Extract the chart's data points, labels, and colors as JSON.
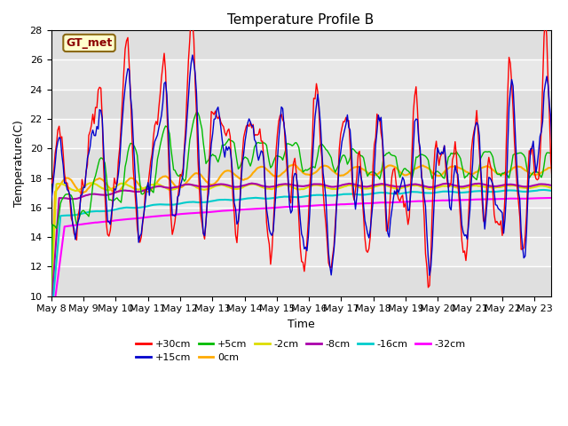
{
  "title": "Temperature Profile B",
  "xlabel": "Time",
  "ylabel": "Temperature(C)",
  "annotation": "GT_met",
  "ylim": [
    10,
    28
  ],
  "x_tick_labels": [
    "May 8",
    "May 9",
    "May 10",
    "May 11",
    "May 12",
    "May 13",
    "May 14",
    "May 15",
    "May 16",
    "May 17",
    "May 18",
    "May 19",
    "May 20",
    "May 21",
    "May 22",
    "May 23"
  ],
  "series_colors": {
    "+30cm": "#ff0000",
    "+15cm": "#0000cc",
    "+5cm": "#00bb00",
    "0cm": "#ffaa00",
    "-2cm": "#dddd00",
    "-8cm": "#aa00aa",
    "-16cm": "#00cccc",
    "-32cm": "#ff00ff"
  },
  "plot_bg_color": "#e8e8e8",
  "title_fontsize": 11,
  "axis_fontsize": 9,
  "tick_fontsize": 8,
  "legend_ncol_row1": 6,
  "legend_row1": [
    "+30cm",
    "+15cm",
    "+5cm",
    "0cm",
    "-2cm",
    "-8cm"
  ],
  "legend_row2": [
    "-16cm",
    "-32cm"
  ]
}
